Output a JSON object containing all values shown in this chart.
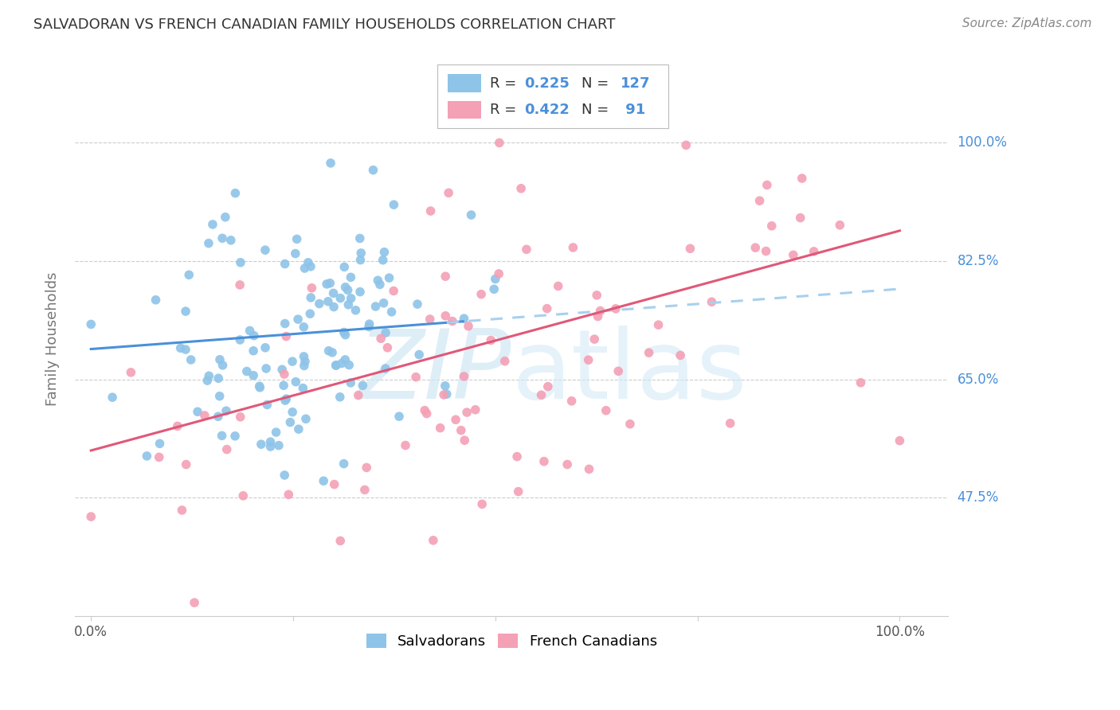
{
  "title": "SALVADORAN VS FRENCH CANADIAN FAMILY HOUSEHOLDS CORRELATION CHART",
  "source": "Source: ZipAtlas.com",
  "ylabel": "Family Households",
  "blue_color": "#8ec4e8",
  "pink_color": "#f4a0b5",
  "blue_line_color": "#4a90d9",
  "pink_line_color": "#e05878",
  "blue_dash_color": "#a8d0ee",
  "watermark_color": "#d0e8f5",
  "salvadorans_label": "Salvadorans",
  "french_canadians_label": "French Canadians",
  "blue_R": 0.225,
  "blue_N": 127,
  "pink_R": 0.422,
  "pink_N": 91,
  "ytick_vals": [
    0.475,
    0.65,
    0.825,
    1.0
  ],
  "ytick_labels": [
    "47.5%",
    "65.0%",
    "82.5%",
    "100.0%"
  ],
  "ylim_low": 0.3,
  "ylim_high": 1.12,
  "xlim_low": -0.02,
  "xlim_high": 1.06
}
